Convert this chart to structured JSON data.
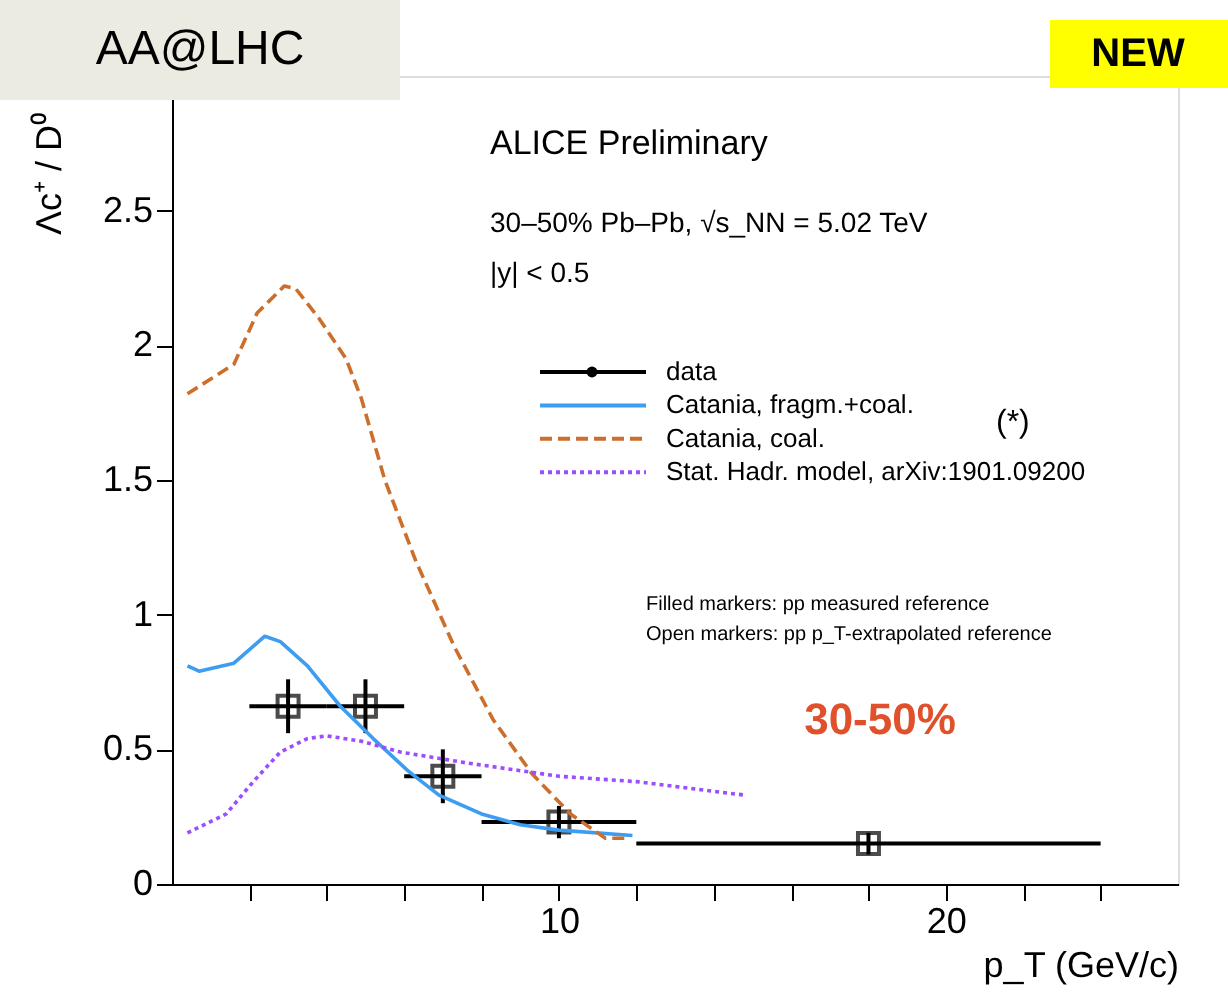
{
  "chart_data": {
    "type": "line",
    "xlabel": "p_T (GeV/c)",
    "ylabel": "Λc⁺ / D⁰",
    "xlim": [
      0,
      26
    ],
    "xticks": [
      {
        "value": 2,
        "label": null
      },
      {
        "value": 4,
        "label": null
      },
      {
        "value": 6,
        "label": null
      },
      {
        "value": 8,
        "label": null
      },
      10,
      {
        "value": 12,
        "label": null
      },
      {
        "value": 14,
        "label": null
      },
      {
        "value": 16,
        "label": null
      },
      {
        "value": 18,
        "label": null
      },
      20,
      {
        "value": 22,
        "label": null
      },
      {
        "value": 24,
        "label": null
      }
    ],
    "ylim": [
      0,
      3
    ],
    "yticks": [
      0,
      0.5,
      1,
      1.5,
      2,
      2.5
    ],
    "grid": false,
    "legend": "top right",
    "series": [
      {
        "name": "data",
        "type": "scatter",
        "color": "#000000",
        "marker": "square",
        "x": [
          3,
          5,
          7,
          10,
          18
        ],
        "values": [
          0.66,
          0.66,
          0.4,
          0.23,
          0.15
        ],
        "errors": [
          0.1,
          0.1,
          0.1,
          0.06,
          0.04
        ],
        "xerrors": [
          1,
          1,
          1,
          2,
          6
        ]
      },
      {
        "name": "Catania, fragm.+coal.",
        "type": "line",
        "color": "#3d9df0",
        "line_style": "solid",
        "x": [
          0.4,
          0.7,
          1.6,
          2.4,
          2.8,
          3.5,
          4.35,
          5.2,
          6.1,
          6.9,
          8.0,
          9.0,
          10.0,
          11.9
        ],
        "values": [
          0.81,
          0.79,
          0.82,
          0.92,
          0.9,
          0.81,
          0.66,
          0.54,
          0.42,
          0.33,
          0.26,
          0.22,
          0.2,
          0.18
        ]
      },
      {
        "name": "Catania, coal.",
        "type": "line",
        "color": "#cc6f2c",
        "line_style": "dashed",
        "x": [
          0.4,
          1.6,
          2.2,
          2.9,
          3.2,
          3.8,
          4.5,
          4.9,
          5.5,
          6.3,
          7.3,
          8.3,
          9.3,
          10.3,
          11.2,
          11.8
        ],
        "values": [
          1.82,
          1.93,
          2.12,
          2.22,
          2.21,
          2.1,
          1.95,
          1.8,
          1.5,
          1.2,
          0.88,
          0.61,
          0.41,
          0.26,
          0.17,
          0.17
        ]
      },
      {
        "name": "Stat. Hadr. model, arXiv:1901.09200",
        "type": "line",
        "color": "#9b4dff",
        "line_style": "dotted",
        "x": [
          0.4,
          1.4,
          2.1,
          2.8,
          3.5,
          4.0,
          4.9,
          5.9,
          7.6,
          10.0,
          12.0,
          14.8
        ],
        "values": [
          0.19,
          0.26,
          0.38,
          0.49,
          0.54,
          0.55,
          0.53,
          0.49,
          0.45,
          0.4,
          0.38,
          0.33
        ]
      }
    ],
    "annotations": [
      "AA@LHC",
      "NEW",
      "ALICE Preliminary",
      "30–50% Pb–Pb, √s_NN = 5.02 TeV",
      "|y| < 0.5",
      "(*)",
      "Filled markers: pp measured reference",
      "Open markers: pp p_T-extrapolated reference",
      "30-50%"
    ]
  }
}
